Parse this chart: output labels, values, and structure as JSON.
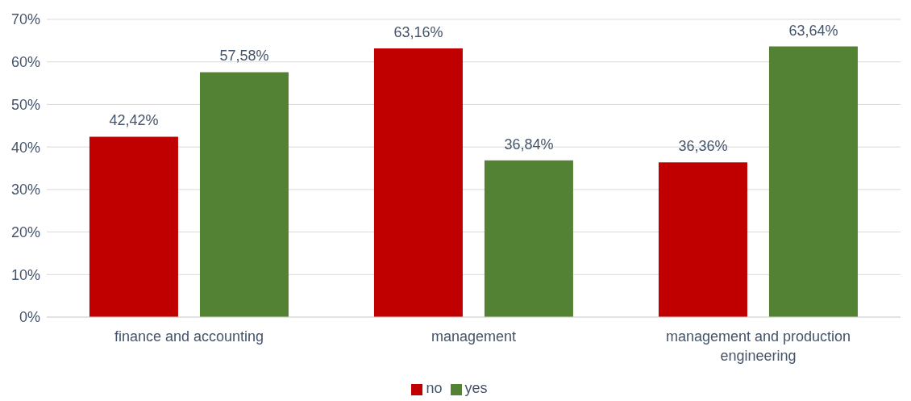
{
  "chart_data": {
    "type": "bar",
    "categories": [
      "finance and accounting",
      "management",
      "management and production engineering"
    ],
    "series": [
      {
        "name": "no",
        "color": "#c00000",
        "values": [
          42.42,
          63.16,
          36.36
        ],
        "value_labels": [
          "42,42%",
          "63,16%",
          "36,36%"
        ]
      },
      {
        "name": "yes",
        "color": "#548235",
        "values": [
          57.58,
          36.84,
          63.64
        ],
        "value_labels": [
          "57,58%",
          "36,84%",
          "63,64%"
        ]
      }
    ],
    "ylim": [
      0,
      70
    ],
    "yticks": [
      {
        "value": 0,
        "label": "0%"
      },
      {
        "value": 10,
        "label": "10%"
      },
      {
        "value": 20,
        "label": "20%"
      },
      {
        "value": 30,
        "label": "30%"
      },
      {
        "value": 40,
        "label": "40%"
      },
      {
        "value": 50,
        "label": "50%"
      },
      {
        "value": 60,
        "label": "60%"
      },
      {
        "value": 70,
        "label": "70%"
      }
    ],
    "grid": "y",
    "legend": "bottom"
  }
}
